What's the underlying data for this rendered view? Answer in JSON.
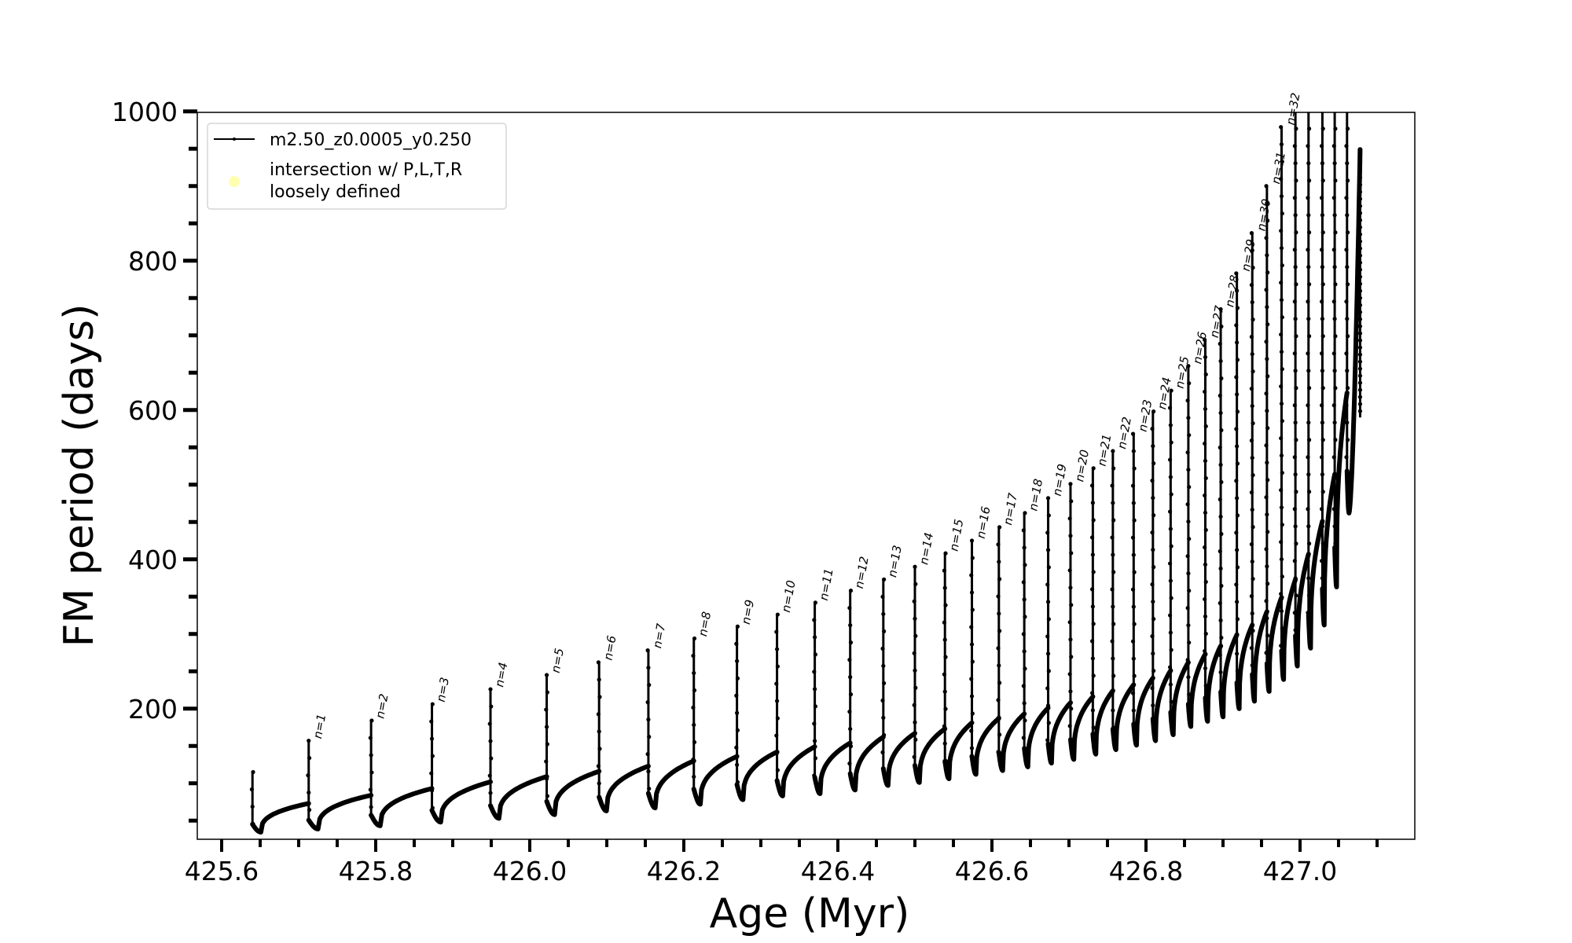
{
  "chart_data": {
    "type": "line",
    "title": "",
    "xlabel": "Age (Myr)",
    "ylabel": "FM period (days)",
    "xlim": [
      425.567,
      427.149
    ],
    "ylim": [
      25,
      1000
    ],
    "grid": false,
    "xticks": [
      425.6,
      425.8,
      426.0,
      426.2,
      426.4,
      426.6,
      426.8,
      427.0
    ],
    "xtick_labels": [
      "425.6",
      "425.8",
      "426.0",
      "426.2",
      "426.4",
      "426.6",
      "426.8",
      "427.0"
    ],
    "xminor_step": 0.05,
    "yticks": [
      200,
      400,
      600,
      800,
      1000
    ],
    "ytick_labels": [
      "200",
      "400",
      "600",
      "800",
      "1000"
    ],
    "yminor_step": 50,
    "legend": {
      "placement": "upper-left",
      "entries": [
        {
          "label": "m2.50_z0.0005_y0.250",
          "marker": "line-with-dots",
          "color": "#000000"
        },
        {
          "label_lines": [
            "intersection w/ P,L,T,R",
            "loosely defined"
          ],
          "marker": "circle",
          "color": "#ffffb0"
        }
      ]
    },
    "series_color": "#000000",
    "cycles": {
      "labels": [
        "",
        "n=1",
        "n=2",
        "n=3",
        "n=4",
        "n=5",
        "n=6",
        "n=7",
        "n=8",
        "n=9",
        "n=10",
        "n=11",
        "n=12",
        "n=13",
        "n=14",
        "n=15",
        "n=16",
        "n=17",
        "n=18",
        "n=19",
        "n=20",
        "n=21",
        "n=22",
        "n=23",
        "n=24",
        "n=25",
        "n=26",
        "n=27",
        "n=28",
        "n=29",
        "n=30",
        "n=31",
        "n=32",
        "",
        "",
        "",
        "",
        "",
        ""
      ],
      "age": [
        425.64,
        425.713,
        425.794,
        425.873,
        425.949,
        426.022,
        426.09,
        426.154,
        426.213,
        426.269,
        426.321,
        426.37,
        426.416,
        426.459,
        426.5,
        426.539,
        426.574,
        426.609,
        426.642,
        426.673,
        426.702,
        426.731,
        426.757,
        426.784,
        426.809,
        426.832,
        426.855,
        426.877,
        426.897,
        426.918,
        426.938,
        426.957,
        426.976,
        426.994,
        427.011,
        427.029,
        427.045,
        427.061,
        427.078
      ],
      "peak": [
        115,
        157,
        184,
        206,
        226,
        245,
        262,
        278,
        294,
        310,
        326,
        342,
        358,
        373,
        390,
        408,
        425,
        443,
        462,
        482,
        501,
        522,
        545,
        568,
        598,
        626,
        659,
        694,
        735,
        783,
        837,
        900,
        979,
        1000,
        1000,
        1000,
        1000,
        1000,
        949
      ],
      "pre_spike": [
        65,
        73,
        84,
        93,
        102,
        109,
        116,
        123,
        130,
        136,
        142,
        149,
        154,
        162,
        167,
        173,
        181,
        187,
        193,
        201,
        208,
        216,
        224,
        232,
        241,
        251,
        262,
        273,
        284,
        299,
        312,
        330,
        349,
        373,
        407,
        451,
        514,
        623,
        949
      ],
      "trough": [
        34.5,
        38.7,
        43,
        48,
        53,
        58,
        63,
        67,
        72,
        78,
        83,
        86,
        91,
        97,
        101,
        106,
        112,
        117,
        122,
        127,
        132,
        139,
        145,
        151,
        157,
        165,
        176,
        183,
        189,
        200,
        210,
        223,
        239,
        257,
        281,
        312,
        363,
        462,
        590
      ]
    }
  }
}
